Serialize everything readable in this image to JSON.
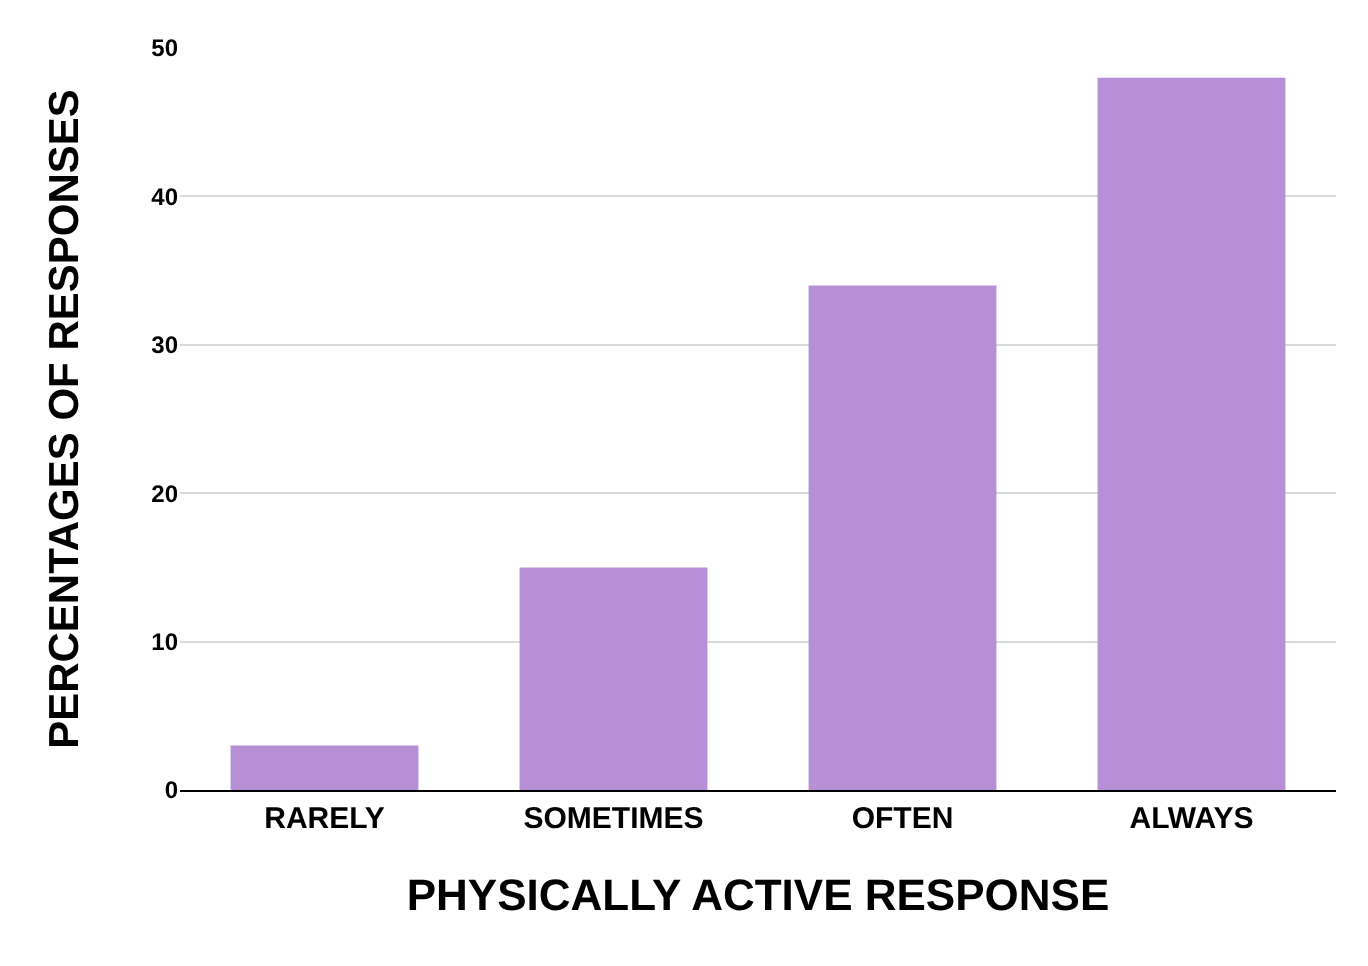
{
  "chart_data": {
    "type": "bar",
    "xlabel": "PHYSICALLY ACTIVE RESPONSE",
    "ylabel": "PERCENTAGES OF RESPONSES",
    "categories": [
      "RARELY",
      "SOMETIMES",
      "OFTEN",
      "ALWAYS"
    ],
    "values": [
      3,
      15,
      34,
      48
    ],
    "color": "#b68fd6",
    "ylim": [
      0,
      50
    ],
    "yticks": [
      0,
      10,
      20,
      30,
      40,
      50
    ],
    "grid": "y"
  }
}
